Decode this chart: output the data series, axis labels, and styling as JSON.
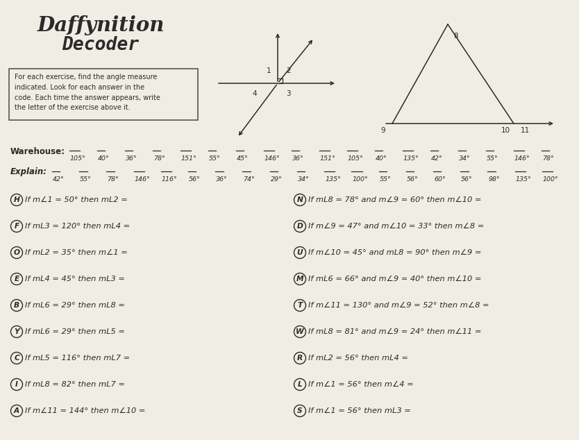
{
  "title_line1": "Daffynition",
  "title_line2": "Decoder",
  "bg_color": "#f0ede4",
  "text_color": "#2a2a2a",
  "warehouse_vals": [
    "105°",
    "40°",
    "36°",
    "78°",
    "151°",
    "55°",
    "45°",
    "146°",
    "36°",
    "151°",
    "105°",
    "40°",
    "135°",
    "42°",
    "34°",
    "55°",
    "146°",
    "78°"
  ],
  "explain_vals": [
    "42°",
    "55°",
    "78°",
    "146°",
    "116°",
    "56°",
    "36°",
    "74°",
    "29°",
    "34°",
    "135°",
    "100°",
    "55°",
    "56°",
    "60°",
    "56°",
    "98°",
    "135°",
    "100°"
  ],
  "left_items": [
    [
      "H",
      "If m∠1 = 50° then mL2 ="
    ],
    [
      "F",
      "If mL3 = 120° then mL4 ="
    ],
    [
      "O",
      "If mL2 = 35° then m∠1 ="
    ],
    [
      "E",
      "If mL4 = 45° then mL3 ="
    ],
    [
      "B",
      "If mL6 = 29° then mL8 ="
    ],
    [
      "Y",
      "If mL6 = 29° then mL5 ="
    ],
    [
      "C",
      "If mL5 = 116° then mL7 ="
    ],
    [
      "I",
      "If mL8 = 82° then mL7 ="
    ],
    [
      "A",
      "If m∠11 = 144° then m∠10 ="
    ]
  ],
  "right_items": [
    [
      "N",
      "If mL8 = 78° and m∠9 = 60° then m∠10 ="
    ],
    [
      "D",
      "If m∠9 = 47° and m∠10 = 33° then m∠8 ="
    ],
    [
      "U",
      "If m∠10 = 45° and mL8 = 90° then m∠9 ="
    ],
    [
      "M",
      "If mL6 = 66° and m∠9 = 40° then m∠10 ="
    ],
    [
      "T",
      "If m∠11 = 130° and m∠9 = 52° then m∠8 ="
    ],
    [
      "W",
      "If mL8 = 81° and m∠9 = 24° then m∠11 ="
    ],
    [
      "R",
      "If mL2 = 56° then mL4 ="
    ],
    [
      "L",
      "If m∠1 = 56° then m∠4 ="
    ],
    [
      "S",
      "If m∠1 = 56° then mL3 ="
    ]
  ]
}
